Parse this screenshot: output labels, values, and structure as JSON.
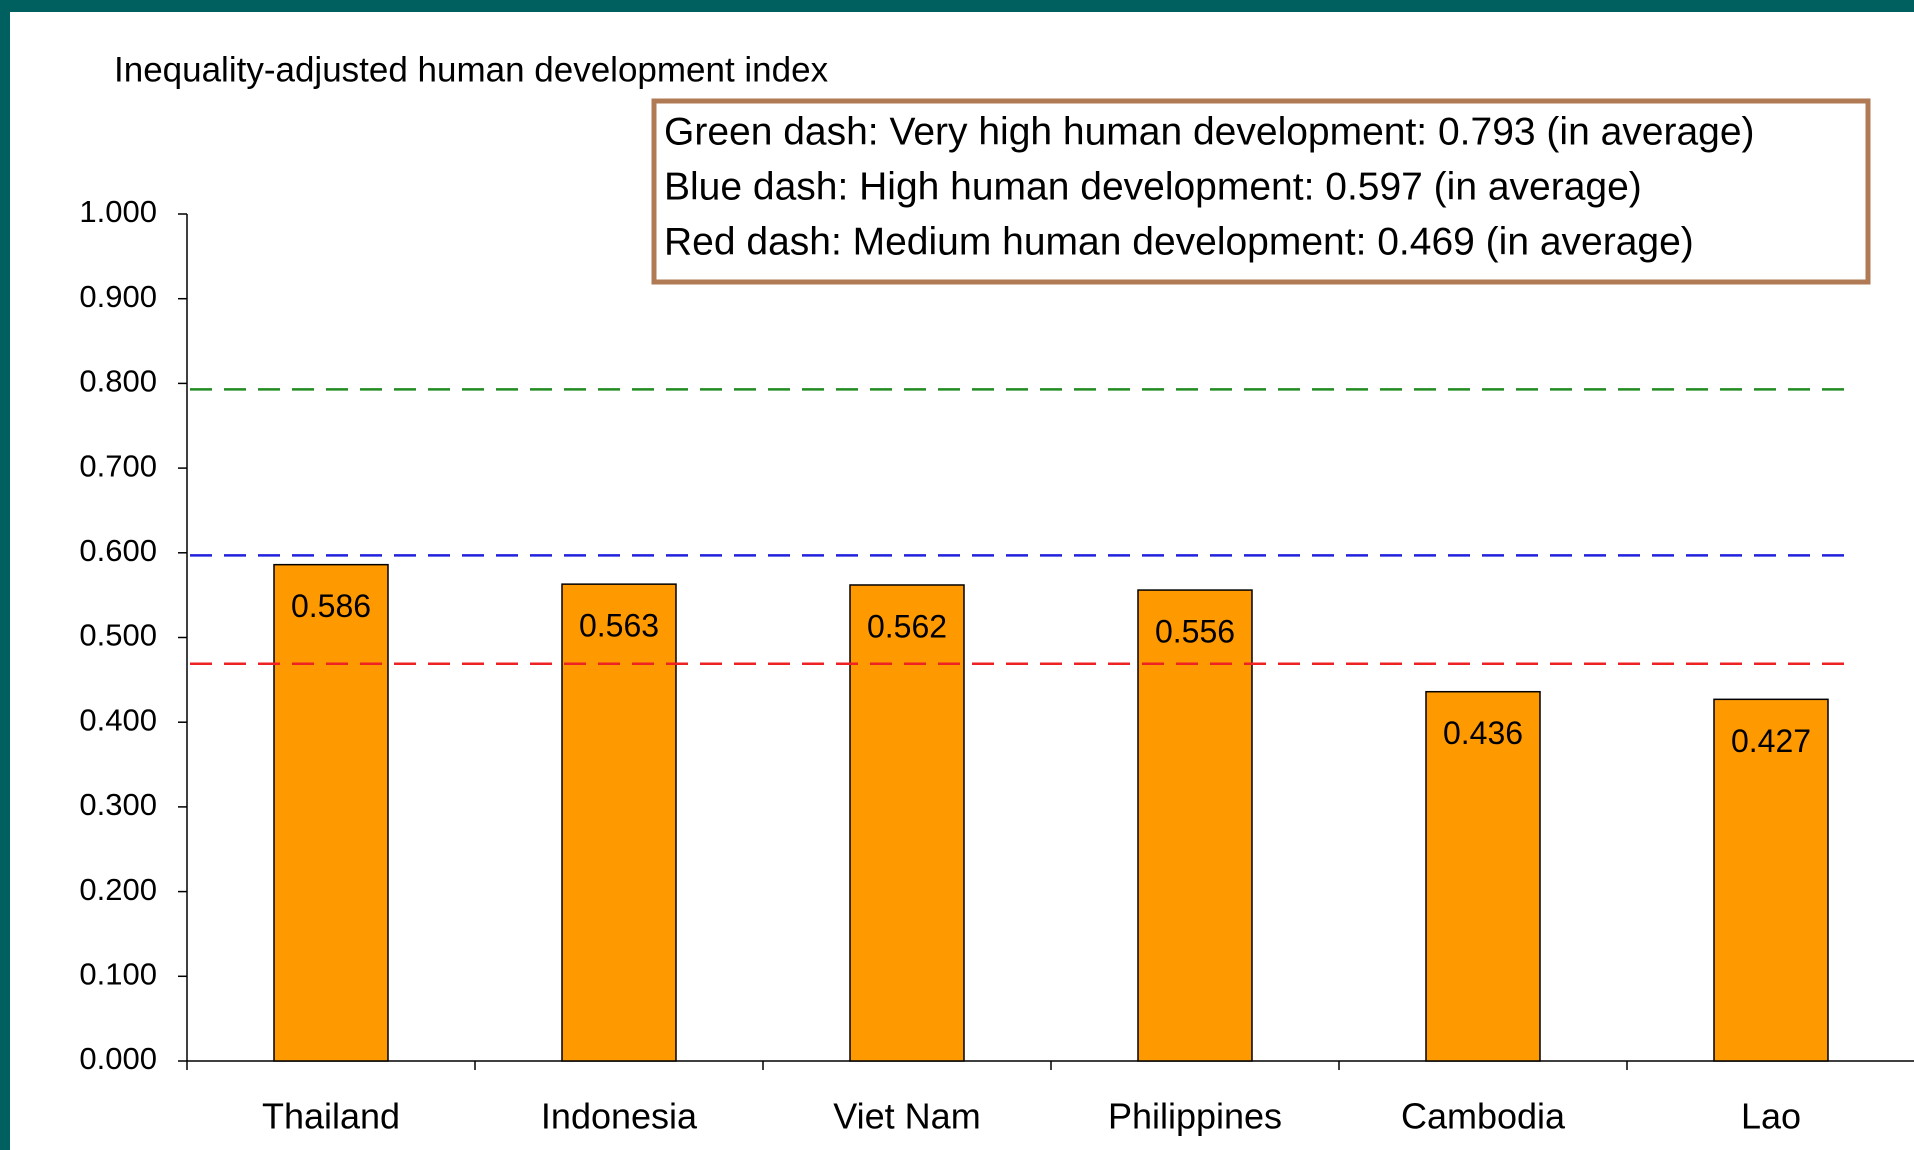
{
  "chart_data": {
    "type": "bar",
    "title": "Inequality-adjusted human development index",
    "annotations": [
      "Green dash: Very high human development: 0.793 (in average)",
      "Blue dash: High human development: 0.597 (in average)",
      "Red dash: Medium human development: 0.469 (in average)"
    ],
    "categories": [
      "Thailand",
      "Indonesia",
      "Viet Nam",
      "Philippines",
      "Cambodia",
      "Lao"
    ],
    "values": [
      0.586,
      0.563,
      0.562,
      0.556,
      0.436,
      0.427
    ],
    "color": "#ff9900",
    "reference_lines": [
      {
        "value": 0.793,
        "color": "#228b22"
      },
      {
        "value": 0.597,
        "color": "#2222dd"
      },
      {
        "value": 0.469,
        "color": "#ee2222"
      }
    ],
    "ylim": [
      0,
      1
    ],
    "yticks": [
      {
        "value": 0,
        "label": "0.000"
      },
      {
        "value": 0.1,
        "label": "0.100"
      },
      {
        "value": 0.2,
        "label": "0.200"
      },
      {
        "value": 0.3,
        "label": "0.300"
      },
      {
        "value": 0.4,
        "label": "0.400"
      },
      {
        "value": 0.5,
        "label": "0.500"
      },
      {
        "value": 0.6,
        "label": "0.600"
      },
      {
        "value": 0.7,
        "label": "0.700"
      },
      {
        "value": 0.8,
        "label": "0.800"
      },
      {
        "value": 0.9,
        "label": "0.900"
      },
      {
        "value": 1,
        "label": "1.000"
      }
    ],
    "grid": false
  }
}
